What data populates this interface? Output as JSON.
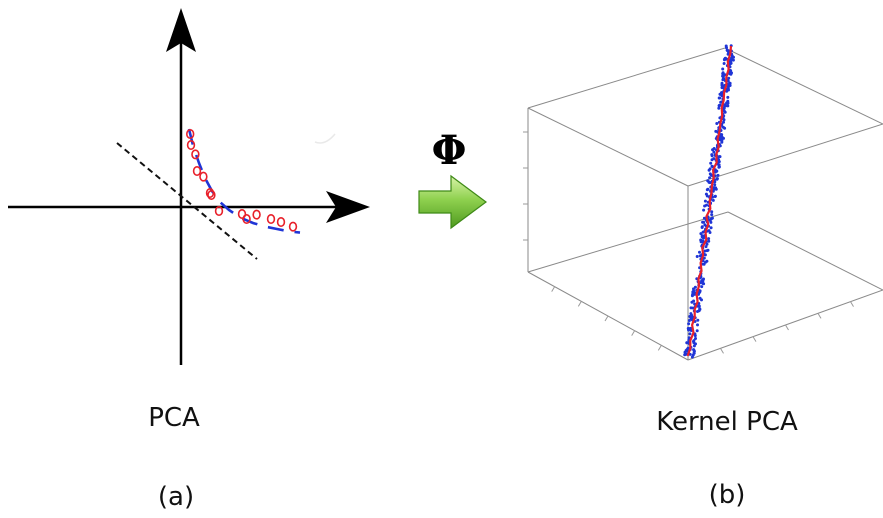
{
  "panel_a": {
    "caption": "PCA",
    "label": "(a)",
    "points": [
      [
        0.46,
        3.65
      ],
      [
        0.5,
        3.1
      ],
      [
        0.72,
        2.63
      ],
      [
        0.8,
        1.8
      ],
      [
        1.12,
        1.52
      ],
      [
        1.45,
        0.7
      ],
      [
        1.52,
        0.6
      ],
      [
        1.9,
        -0.2
      ],
      [
        3.05,
        -0.35
      ],
      [
        3.28,
        -0.6
      ],
      [
        3.78,
        -0.38
      ],
      [
        4.5,
        -0.6
      ],
      [
        5.0,
        -0.75
      ],
      [
        5.6,
        -0.98
      ]
    ],
    "curve": [
      [
        0.4,
        3.9
      ],
      [
        0.62,
        3.0
      ],
      [
        0.9,
        2.2
      ],
      [
        1.2,
        1.45
      ],
      [
        1.55,
        0.8
      ],
      [
        1.95,
        0.25
      ],
      [
        2.4,
        -0.15
      ],
      [
        3.0,
        -0.55
      ],
      [
        3.6,
        -0.8
      ],
      [
        4.2,
        -0.98
      ],
      [
        4.8,
        -1.1
      ],
      [
        5.4,
        -1.22
      ],
      [
        5.95,
        -1.28
      ]
    ],
    "pca_line": [
      [
        -3.2,
        3.2
      ],
      [
        3.8,
        -2.6
      ]
    ]
  },
  "mapping": {
    "symbol": "Φ",
    "arrow_color": "#7ac943"
  },
  "panel_b": {
    "caption": "Kernel PCA",
    "label": "(b)",
    "point_color": "#1f35d6",
    "line_color": "#e8202a"
  },
  "colors": {
    "points": "#e8202a",
    "curve": "#1f35d6",
    "pca_line": "#111111",
    "axes": "#000000"
  }
}
